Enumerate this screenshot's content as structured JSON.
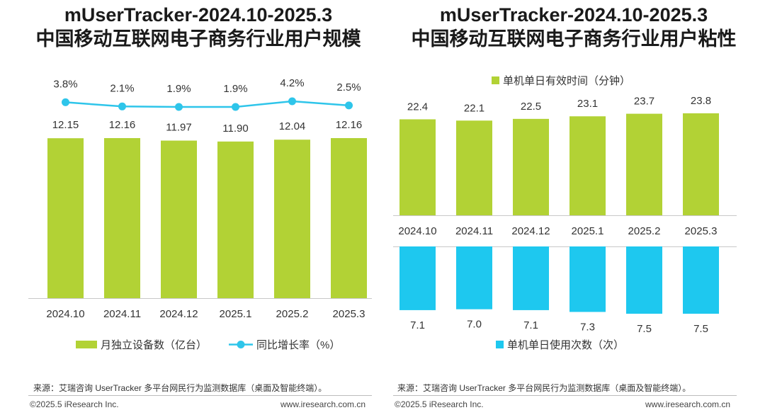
{
  "left": {
    "title_line1": "mUserTracker-2024.10-2025.3",
    "title_line2": "中国移动互联网电子商务行业用户规模",
    "legend_bar": "月独立设备数（亿台）",
    "legend_line": "同比增长率（%）",
    "source": "来源：艾瑞咨询 UserTracker 多平台网民行为监测数据库（桌面及智能终端）。",
    "copyright": "©2025.5 iResearch Inc.",
    "website": "www.iresearch.com.cn"
  },
  "right": {
    "title_line1": "mUserTracker-2024.10-2025.3",
    "title_line2": "中国移动互联网电子商务行业用户粘性",
    "legend_top": "单机单日有效时间（分钟）",
    "legend_bottom": "单机单日使用次数（次）",
    "source": "来源：艾瑞咨询 UserTracker 多平台网民行为监测数据库（桌面及智能终端）。",
    "copyright": "©2025.5 iResearch Inc.",
    "website": "www.iresearch.com.cn"
  },
  "colors": {
    "green": "#b2d235",
    "blue": "#1ec8ef",
    "line": "#2ec5ea"
  },
  "chart_data": [
    {
      "type": "bar",
      "title": "中国移动互联网电子商务行业用户规模",
      "categories": [
        "2024.10",
        "2024.11",
        "2024.12",
        "2025.1",
        "2025.2",
        "2025.3"
      ],
      "series": [
        {
          "name": "月独立设备数（亿台）",
          "type": "bar",
          "values": [
            12.15,
            12.16,
            11.97,
            11.9,
            12.04,
            12.16
          ],
          "labels": [
            "12.15",
            "12.16",
            "11.97",
            "11.90",
            "12.04",
            "12.16"
          ]
        },
        {
          "name": "同比增长率（%）",
          "type": "line",
          "values": [
            3.8,
            2.1,
            1.9,
            1.9,
            4.2,
            2.5
          ],
          "labels": [
            "3.8%",
            "2.1%",
            "1.9%",
            "1.9%",
            "4.2%",
            "2.5%"
          ]
        }
      ]
    },
    {
      "type": "bar",
      "title": "中国移动互联网电子商务行业用户粘性",
      "categories": [
        "2024.10",
        "2024.11",
        "2024.12",
        "2025.1",
        "2025.2",
        "2025.3"
      ],
      "series": [
        {
          "name": "单机单日有效时间（分钟）",
          "values": [
            22.4,
            22.1,
            22.5,
            23.1,
            23.7,
            23.8
          ],
          "labels": [
            "22.4",
            "22.1",
            "22.5",
            "23.1",
            "23.7",
            "23.8"
          ]
        },
        {
          "name": "单机单日使用次数（次）",
          "values": [
            7.1,
            7.0,
            7.1,
            7.3,
            7.5,
            7.5
          ],
          "labels": [
            "7.1",
            "7.0",
            "7.1",
            "7.3",
            "7.5",
            "7.5"
          ]
        }
      ]
    }
  ]
}
